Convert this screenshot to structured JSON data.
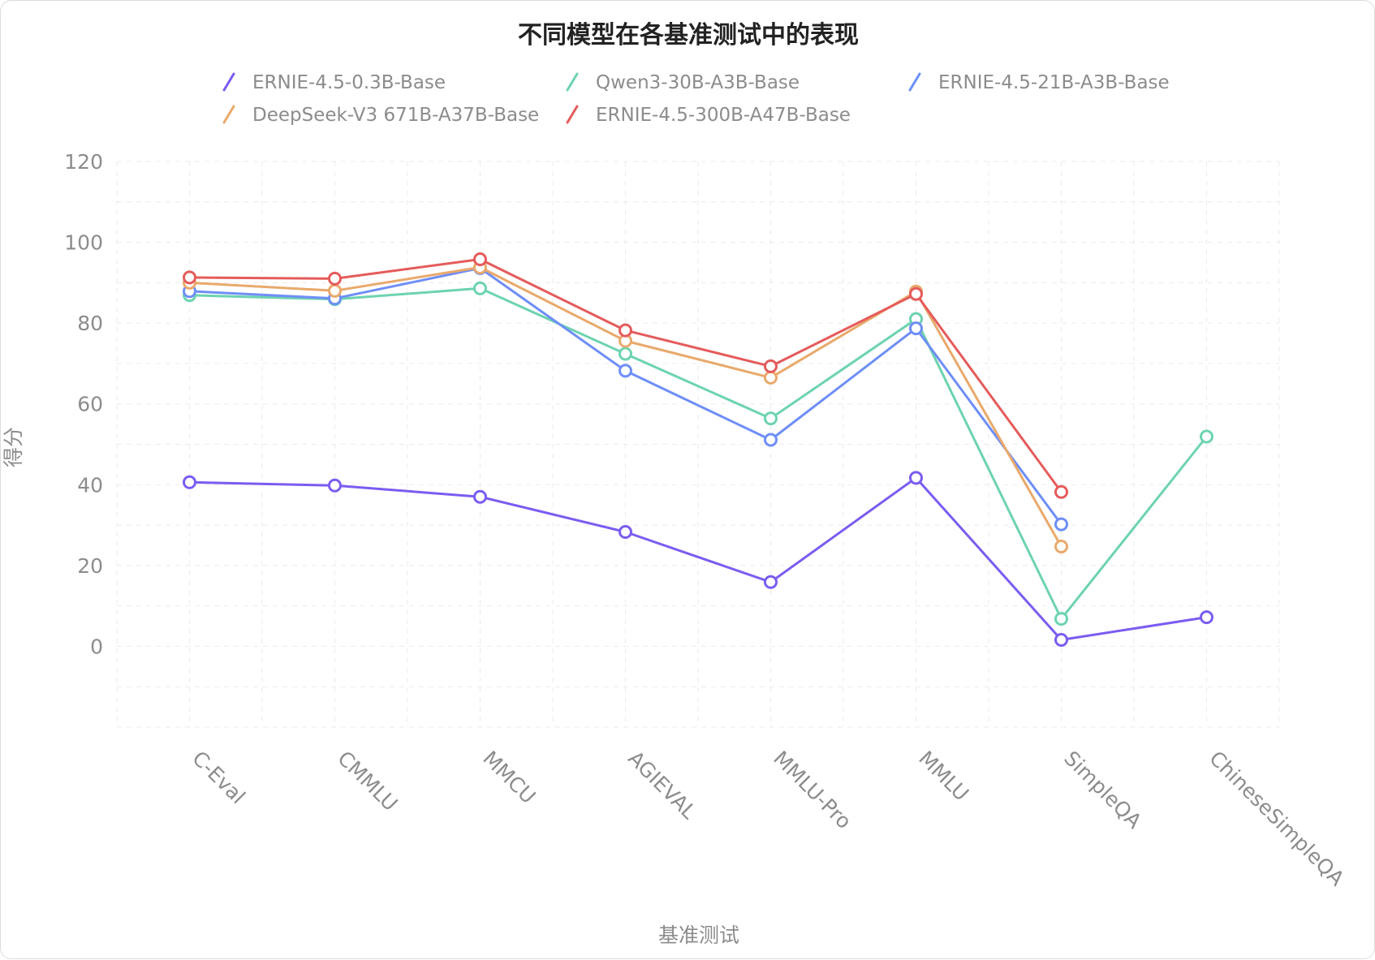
{
  "chart_data": {
    "type": "line",
    "title": "不同模型在各基准测试中的表现",
    "xlabel": "基准测试",
    "ylabel": "得分",
    "ylim": [
      -20,
      120
    ],
    "yticks": [
      0,
      20,
      40,
      60,
      80,
      100,
      120
    ],
    "grid": true,
    "legend_position": "top",
    "categories": [
      "C-Eval",
      "CMMLU",
      "MMCU",
      "AGIEVAL",
      "MMLU-Pro",
      "MMLU",
      "SimpleQA",
      "ChineseSimpleQA"
    ],
    "series": [
      {
        "name": "ERNIE-4.5-0.3B-Base",
        "color": "#7B5CF0",
        "values": [
          40.6,
          39.8,
          37.0,
          28.3,
          15.9,
          41.7,
          1.6,
          7.2
        ]
      },
      {
        "name": "Qwen3-30B-A3B-Base",
        "color": "#6DD3B0",
        "values": [
          86.9,
          85.9,
          88.6,
          72.4,
          56.4,
          81.0,
          6.8,
          51.9
        ]
      },
      {
        "name": "ERNIE-4.5-21B-A3B-Base",
        "color": "#6E8EF7",
        "values": [
          87.9,
          86.1,
          93.6,
          68.2,
          51.1,
          78.7,
          30.2,
          null
        ]
      },
      {
        "name": "DeepSeek-V3 671B-A37B-Base",
        "color": "#E9A96B",
        "values": [
          90.0,
          88.0,
          93.8,
          75.6,
          66.5,
          87.8,
          24.7,
          null
        ]
      },
      {
        "name": "ERNIE-4.5-300B-A47B-Base",
        "color": "#E55B5B",
        "values": [
          91.3,
          91.0,
          95.8,
          78.2,
          69.3,
          87.2,
          38.2,
          null
        ]
      }
    ]
  }
}
